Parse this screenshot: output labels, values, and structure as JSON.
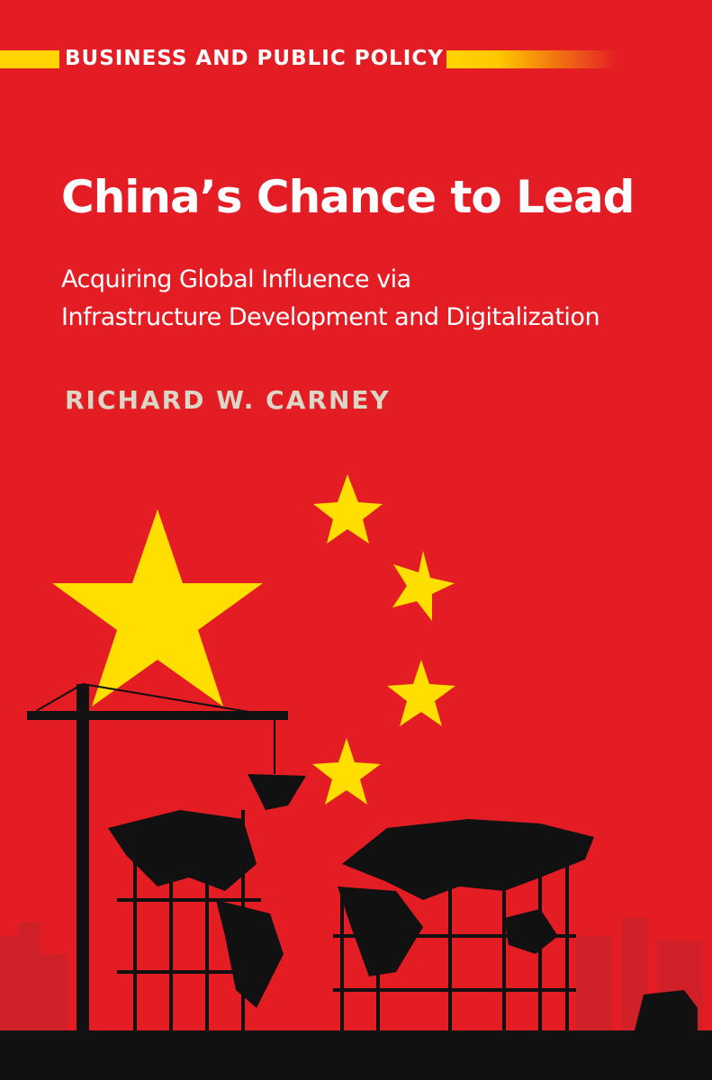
{
  "series": {
    "label": "BUSINESS AND PUBLIC POLICY"
  },
  "book": {
    "title": "China’s Chance to Lead",
    "subtitle_line1": "Acquiring Global Influence via",
    "subtitle_line2": "Infrastructure Development and Digitalization",
    "author": "RICHARD W. CARNEY"
  },
  "colors": {
    "background": "#e41d25",
    "star": "#ffde00",
    "silhouette": "#111111",
    "author": "#dcd6c6"
  },
  "illustration": {
    "icons": [
      "large-star-icon",
      "small-star-icon",
      "crane-icon",
      "world-map-scaffold-icon",
      "city-skyline-icon"
    ]
  }
}
